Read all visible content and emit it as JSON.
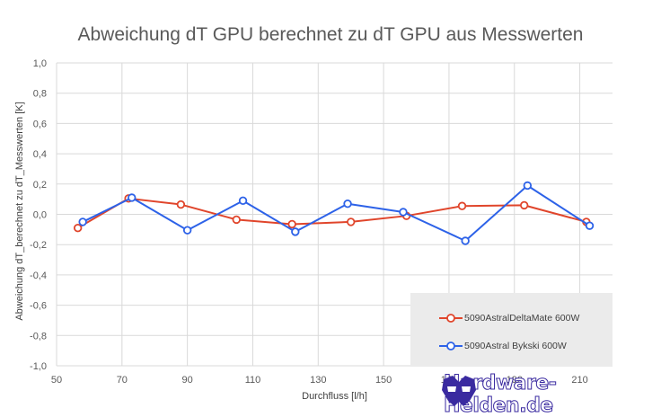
{
  "chart_data": {
    "type": "line",
    "title": "Abweichung dT GPU berechnet zu dT GPU aus Messwerten",
    "xlabel": "Durchfluss [l/h]",
    "ylabel": "Abweichung dT_berechnet zu dT_Messwerten  [K]",
    "xlim": [
      50,
      220
    ],
    "ylim": [
      -1.0,
      1.0
    ],
    "x_ticks": [
      "50",
      "70",
      "90",
      "110",
      "130",
      "150",
      "170",
      "190",
      "210"
    ],
    "y_ticks": [
      "1,0",
      "0,8",
      "0,6",
      "0,4",
      "0,2",
      "0,0",
      "-0,2",
      "-0,4",
      "-0,6",
      "-0,8",
      "-1,0"
    ],
    "grid": true,
    "legend_position": "bottom-right",
    "series": [
      {
        "name": "5090AstralDeltaMate 600W",
        "color": "#e0452b",
        "x": [
          56.5,
          72,
          88,
          105,
          122,
          140,
          157,
          174,
          193,
          212
        ],
        "y": [
          -0.09,
          0.105,
          0.065,
          -0.035,
          -0.065,
          -0.05,
          -0.01,
          0.055,
          0.06,
          -0.05
        ]
      },
      {
        "name": "5090Astral Bykski 600W",
        "color": "#2d62e8",
        "x": [
          58,
          73,
          90,
          107,
          123,
          139,
          156,
          175,
          194,
          213
        ],
        "y": [
          -0.05,
          0.11,
          -0.105,
          0.09,
          -0.115,
          0.07,
          0.015,
          -0.175,
          0.19,
          -0.075
        ]
      }
    ]
  },
  "watermark": {
    "text": "Hardware-Helden.de",
    "icon": "mask-logo-icon"
  }
}
